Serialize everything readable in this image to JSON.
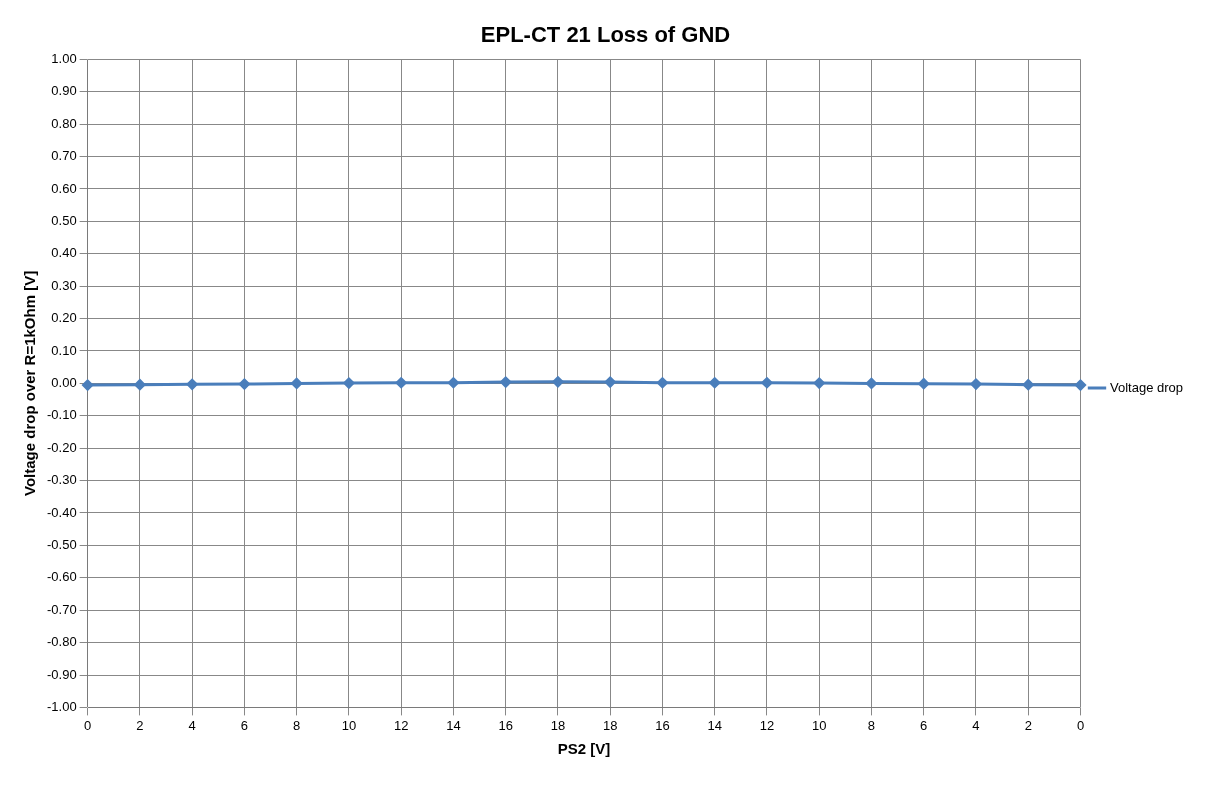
{
  "chart_data": {
    "type": "line",
    "title": "EPL-CT 21 Loss of GND",
    "xlabel": "PS2 [V]",
    "ylabel": "Voltage drop over R=1kOhm [V]",
    "categories": [
      "0",
      "2",
      "4",
      "6",
      "8",
      "10",
      "12",
      "14",
      "16",
      "18",
      "18",
      "16",
      "14",
      "12",
      "10",
      "8",
      "6",
      "4",
      "2",
      "0"
    ],
    "series": [
      {
        "name": "Voltage drop",
        "color": "#4a7ebb",
        "values": [
          -0.005,
          -0.004,
          -0.003,
          -0.002,
          0,
          0.001,
          0.002,
          0.002,
          0.004,
          0.005,
          0.004,
          0.002,
          0.002,
          0.002,
          0.001,
          0,
          -0.001,
          -0.002,
          -0.004,
          -0.005
        ]
      }
    ],
    "ylim": [
      -1,
      1
    ],
    "yticks": [
      {
        "value": -1,
        "label": "-1.00"
      },
      {
        "value": -0.9,
        "label": "-0.90"
      },
      {
        "value": -0.8,
        "label": "-0.80"
      },
      {
        "value": -0.7,
        "label": "-0.70"
      },
      {
        "value": -0.6,
        "label": "-0.60"
      },
      {
        "value": -0.5,
        "label": "-0.50"
      },
      {
        "value": -0.4,
        "label": "-0.40"
      },
      {
        "value": -0.3,
        "label": "-0.30"
      },
      {
        "value": -0.2,
        "label": "-0.20"
      },
      {
        "value": -0.1,
        "label": "-0.10"
      },
      {
        "value": 0,
        "label": "0.00"
      },
      {
        "value": 0.1,
        "label": "0.10"
      },
      {
        "value": 0.2,
        "label": "0.20"
      },
      {
        "value": 0.3,
        "label": "0.30"
      },
      {
        "value": 0.4,
        "label": "0.40"
      },
      {
        "value": 0.5,
        "label": "0.50"
      },
      {
        "value": 0.6,
        "label": "0.60"
      },
      {
        "value": 0.7,
        "label": "0.70"
      },
      {
        "value": 0.8,
        "label": "0.80"
      },
      {
        "value": 0.9,
        "label": "0.90"
      },
      {
        "value": 1,
        "label": "1.00"
      }
    ],
    "grid": true,
    "legend": "right",
    "marker": "diamond",
    "line_style": "solid"
  }
}
